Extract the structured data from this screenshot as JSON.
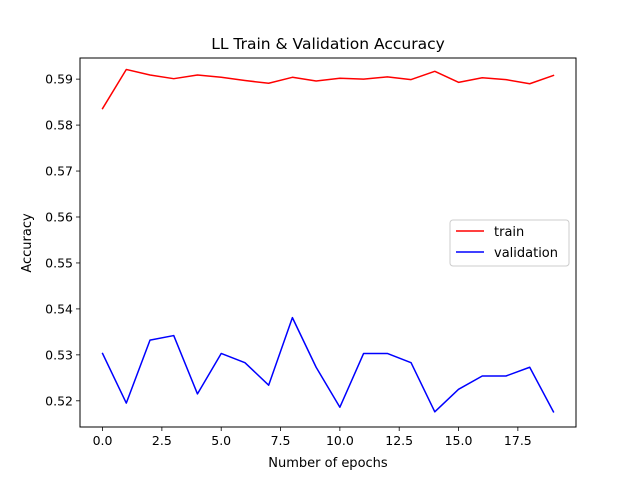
{
  "chart_data": {
    "type": "line",
    "title": "LL Train & Validation Accuracy",
    "xlabel": "Number of epochs",
    "ylabel": "Accuracy",
    "x": [
      0,
      1,
      2,
      3,
      4,
      5,
      6,
      7,
      8,
      9,
      10,
      11,
      12,
      13,
      14,
      15,
      16,
      17,
      18,
      19
    ],
    "xlim": [
      -0.95,
      19.95
    ],
    "ylim": [
      0.5143,
      0.5946
    ],
    "xticks": [
      0.0,
      2.5,
      5.0,
      7.5,
      10.0,
      12.5,
      15.0,
      17.5
    ],
    "xtick_labels": [
      "0.0",
      "2.5",
      "5.0",
      "7.5",
      "10.0",
      "12.5",
      "15.0",
      "17.5"
    ],
    "yticks": [
      0.52,
      0.53,
      0.54,
      0.55,
      0.56,
      0.57,
      0.58,
      0.59
    ],
    "ytick_labels": [
      "0.52",
      "0.53",
      "0.54",
      "0.55",
      "0.56",
      "0.57",
      "0.58",
      "0.59"
    ],
    "grid": false,
    "legend_position": "center-right",
    "series": [
      {
        "name": "train",
        "color": "#ff0000",
        "values": [
          0.5836,
          0.5921,
          0.5909,
          0.5901,
          0.5909,
          0.5904,
          0.5897,
          0.5891,
          0.5904,
          0.5896,
          0.5902,
          0.59,
          0.5905,
          0.5899,
          0.5917,
          0.5893,
          0.5903,
          0.5899,
          0.589,
          0.5908
        ]
      },
      {
        "name": "validation",
        "color": "#0000ff",
        "values": [
          0.5303,
          0.5195,
          0.5332,
          0.5342,
          0.5215,
          0.5303,
          0.5283,
          0.5234,
          0.5381,
          0.5273,
          0.5186,
          0.5303,
          0.5303,
          0.5283,
          0.5176,
          0.5225,
          0.5254,
          0.5254,
          0.5273,
          0.5176
        ]
      }
    ]
  }
}
